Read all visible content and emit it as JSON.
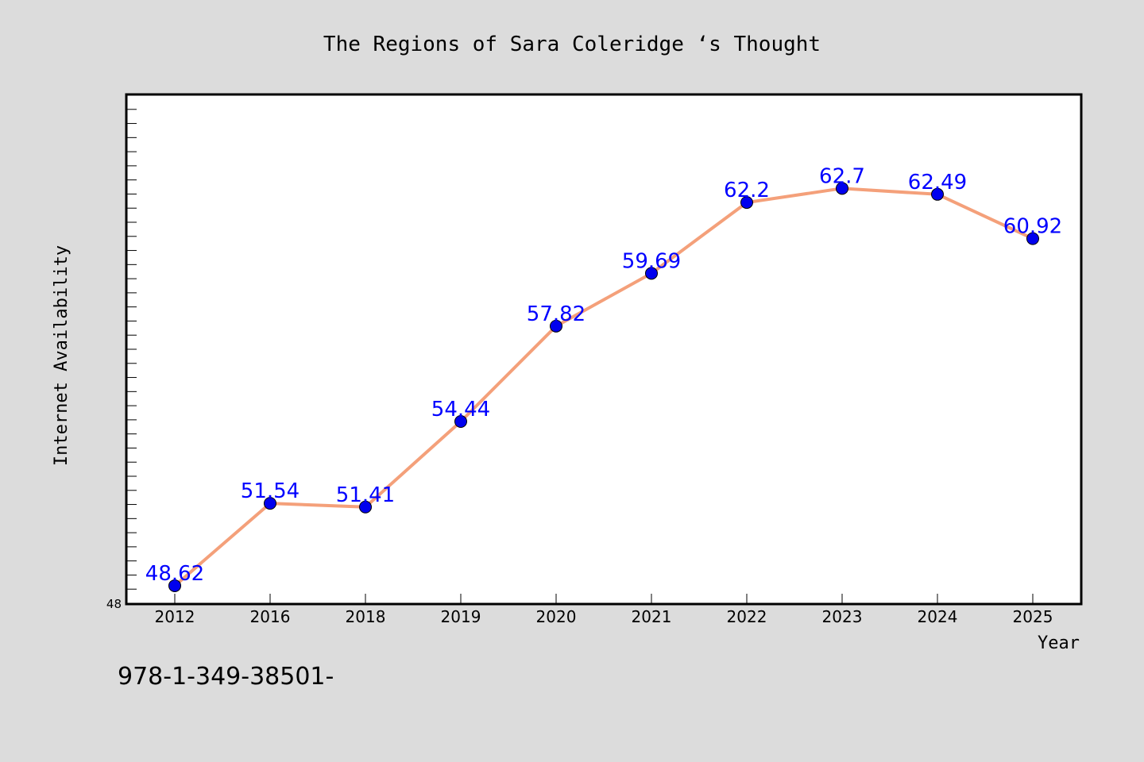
{
  "chart_data": {
    "type": "line",
    "title": "The Regions of Sara Coleridge ‘s Thought",
    "xlabel": "Year",
    "ylabel": "Internet Availability",
    "categories": [
      "2012",
      "2016",
      "2018",
      "2019",
      "2020",
      "2021",
      "2022",
      "2023",
      "2024",
      "2025"
    ],
    "series": [
      {
        "values": [
          48.62,
          51.54,
          51.41,
          54.44,
          57.82,
          59.69,
          62.2,
          62.7,
          62.49,
          60.92
        ],
        "data_labels": [
          "48.62",
          "51.54",
          "51.41",
          "54.44",
          "57.82",
          "59.69",
          "62.2",
          "62.7",
          "62.49",
          "60.92"
        ],
        "line_color": "#f4a07a",
        "marker_color": "#0000ee"
      }
    ],
    "ylim": [
      48,
      66
    ],
    "ytick_labels": [
      "48"
    ],
    "grid": false,
    "legend": "none",
    "label_color": "#0000ff"
  },
  "footnote": "978-1-349-38501-"
}
